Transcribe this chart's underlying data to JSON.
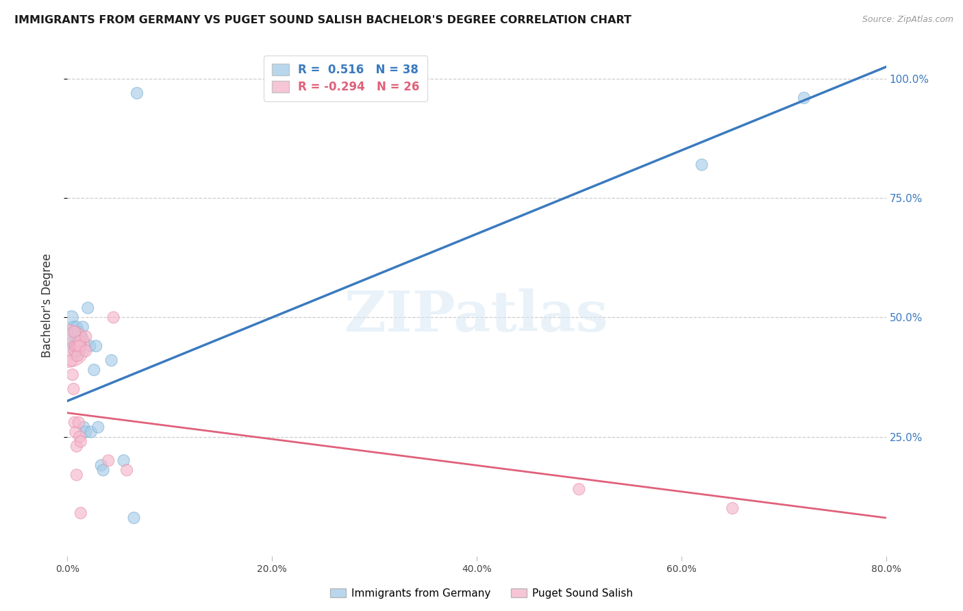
{
  "title": "IMMIGRANTS FROM GERMANY VS PUGET SOUND SALISH BACHELOR'S DEGREE CORRELATION CHART",
  "source": "Source: ZipAtlas.com",
  "ylabel": "Bachelor's Degree",
  "watermark": "ZIPatlas",
  "blue_R": 0.516,
  "blue_N": 38,
  "pink_R": -0.294,
  "pink_N": 26,
  "xlim": [
    0.0,
    0.8
  ],
  "ylim": [
    0.0,
    1.05
  ],
  "yticks": [
    0.25,
    0.5,
    0.75,
    1.0
  ],
  "ytick_labels": [
    "25.0%",
    "50.0%",
    "75.0%",
    "100.0%"
  ],
  "xticks": [
    0.0,
    0.2,
    0.4,
    0.6,
    0.8
  ],
  "xtick_labels": [
    "0.0%",
    "20.0%",
    "40.0%",
    "60.0%",
    "80.0%"
  ],
  "blue_color": "#a8cde8",
  "blue_edge_color": "#7aafd4",
  "blue_line_color": "#3a7abf",
  "pink_color": "#f5b8cc",
  "pink_edge_color": "#e890aa",
  "pink_line_color": "#e0607a",
  "background": "#ffffff",
  "grid_color": "#c8c8c8",
  "blue_scatter_x": [
    0.004,
    0.005,
    0.005,
    0.006,
    0.006,
    0.007,
    0.007,
    0.008,
    0.008,
    0.009,
    0.009,
    0.01,
    0.01,
    0.01,
    0.011,
    0.012,
    0.012,
    0.013,
    0.013,
    0.014,
    0.015,
    0.016,
    0.016,
    0.018,
    0.02,
    0.022,
    0.023,
    0.026,
    0.028,
    0.03,
    0.033,
    0.035,
    0.043,
    0.055,
    0.065,
    0.068,
    0.72,
    0.62
  ],
  "blue_scatter_y": [
    0.5,
    0.47,
    0.45,
    0.48,
    0.44,
    0.44,
    0.43,
    0.46,
    0.42,
    0.48,
    0.44,
    0.46,
    0.44,
    0.43,
    0.47,
    0.44,
    0.43,
    0.46,
    0.44,
    0.46,
    0.48,
    0.45,
    0.27,
    0.26,
    0.52,
    0.44,
    0.26,
    0.39,
    0.44,
    0.27,
    0.19,
    0.18,
    0.41,
    0.2,
    0.08,
    0.97,
    0.96,
    0.82
  ],
  "blue_scatter_s": [
    200,
    150,
    150,
    150,
    150,
    150,
    150,
    150,
    150,
    150,
    150,
    150,
    150,
    150,
    150,
    150,
    150,
    150,
    150,
    150,
    150,
    150,
    150,
    150,
    150,
    150,
    150,
    150,
    150,
    150,
    150,
    150,
    150,
    150,
    150,
    150,
    150,
    150
  ],
  "pink_scatter_x": [
    0.001,
    0.004,
    0.005,
    0.006,
    0.007,
    0.007,
    0.007,
    0.008,
    0.008,
    0.009,
    0.009,
    0.01,
    0.01,
    0.011,
    0.012,
    0.012,
    0.012,
    0.013,
    0.013,
    0.018,
    0.018,
    0.04,
    0.045,
    0.058,
    0.5,
    0.65
  ],
  "pink_scatter_y": [
    0.44,
    0.41,
    0.38,
    0.35,
    0.47,
    0.43,
    0.28,
    0.44,
    0.26,
    0.23,
    0.17,
    0.44,
    0.42,
    0.28,
    0.45,
    0.44,
    0.25,
    0.24,
    0.09,
    0.46,
    0.43,
    0.2,
    0.5,
    0.18,
    0.14,
    0.1
  ],
  "pink_scatter_s": [
    2000,
    150,
    150,
    150,
    150,
    150,
    150,
    150,
    150,
    150,
    150,
    150,
    150,
    150,
    150,
    150,
    150,
    150,
    150,
    150,
    150,
    150,
    150,
    150,
    150,
    150
  ],
  "blue_line_x": [
    0.0,
    0.8
  ],
  "blue_line_y": [
    0.325,
    1.025
  ],
  "pink_line_x": [
    0.0,
    0.8
  ],
  "pink_line_y": [
    0.3,
    0.08
  ]
}
